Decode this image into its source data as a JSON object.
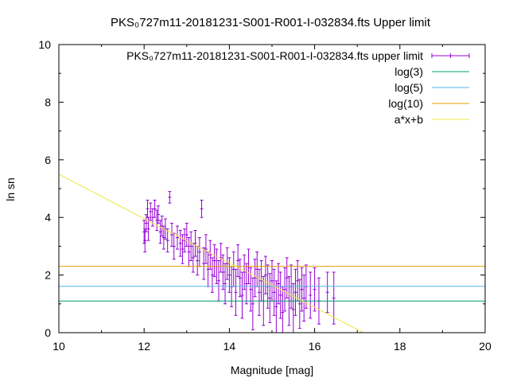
{
  "chart_data": {
    "type": "scatter",
    "title": "PKS₀727m11-20181231-S001-R001-I-032834.fts Upper limit",
    "xlabel": "Magnitude [mag]",
    "ylabel": "ln sn",
    "xlim": [
      10,
      20
    ],
    "ylim": [
      0,
      10
    ],
    "xticks": [
      "10",
      "12",
      "14",
      "16",
      "18",
      "20"
    ],
    "yticks": [
      "0",
      "2",
      "4",
      "6",
      "8",
      "10"
    ],
    "grid": false,
    "legend_position": "top-right",
    "legend": [
      {
        "label": "PKS₀727m11-20181231-S001-R001-I-032834.fts upper limit",
        "color": "#9400d3",
        "style": "errorbar"
      },
      {
        "label": "log(3)",
        "color": "#009e73",
        "style": "line"
      },
      {
        "label": "log(5)",
        "color": "#56b4e9",
        "style": "line"
      },
      {
        "label": "log(10)",
        "color": "#e69f00",
        "style": "line"
      },
      {
        "label": "a*x+b",
        "color": "#f0e442",
        "style": "line"
      }
    ],
    "hlines": [
      {
        "name": "log(3)",
        "y": 1.0986,
        "color": "#009e73"
      },
      {
        "name": "log(5)",
        "y": 1.6094,
        "color": "#56b4e9"
      },
      {
        "name": "log(10)",
        "y": 2.3026,
        "color": "#e69f00"
      }
    ],
    "fit_line": {
      "name": "a*x+b",
      "a": -0.77,
      "b": 13.2,
      "color": "#f0e442"
    },
    "scatter_series": {
      "name": "PKS₀727m11-20181231-S001-R001-I-032834.fts upper limit",
      "color": "#9400d3",
      "points": [
        [
          12.0,
          3.5,
          0.4
        ],
        [
          12.02,
          3.2,
          0.4
        ],
        [
          12.05,
          3.8,
          0.3
        ],
        [
          12.08,
          4.3,
          0.3
        ],
        [
          12.1,
          3.6,
          0.4
        ],
        [
          12.15,
          4.2,
          0.3
        ],
        [
          12.2,
          4.0,
          0.3
        ],
        [
          12.25,
          4.3,
          0.3
        ],
        [
          12.3,
          3.9,
          0.35
        ],
        [
          12.33,
          4.1,
          0.3
        ],
        [
          12.38,
          3.5,
          0.4
        ],
        [
          12.42,
          3.7,
          0.35
        ],
        [
          12.46,
          3.3,
          0.4
        ],
        [
          12.5,
          3.6,
          0.35
        ],
        [
          12.55,
          3.2,
          0.4
        ],
        [
          12.6,
          4.7,
          0.2
        ],
        [
          12.65,
          3.4,
          0.4
        ],
        [
          12.7,
          3.0,
          0.45
        ],
        [
          12.78,
          3.3,
          0.4
        ],
        [
          12.85,
          3.1,
          0.45
        ],
        [
          12.9,
          2.9,
          0.5
        ],
        [
          12.95,
          3.2,
          0.4
        ],
        [
          13.0,
          3.4,
          0.4
        ],
        [
          13.05,
          2.8,
          0.5
        ],
        [
          13.1,
          3.0,
          0.5
        ],
        [
          13.15,
          2.6,
          0.5
        ],
        [
          13.2,
          3.1,
          0.45
        ],
        [
          13.25,
          2.5,
          0.5
        ],
        [
          13.3,
          2.8,
          0.5
        ],
        [
          13.35,
          4.3,
          0.3
        ],
        [
          13.4,
          2.4,
          0.55
        ],
        [
          13.45,
          2.9,
          0.5
        ],
        [
          13.5,
          2.2,
          0.6
        ],
        [
          13.55,
          2.7,
          0.5
        ],
        [
          13.6,
          2.0,
          0.6
        ],
        [
          13.65,
          2.5,
          0.55
        ],
        [
          13.7,
          2.3,
          0.6
        ],
        [
          13.75,
          1.8,
          0.7
        ],
        [
          13.8,
          2.6,
          0.5
        ],
        [
          13.85,
          2.1,
          0.6
        ],
        [
          13.9,
          1.7,
          0.7
        ],
        [
          13.95,
          2.4,
          0.55
        ],
        [
          14.0,
          2.0,
          0.6
        ],
        [
          14.05,
          1.6,
          0.7
        ],
        [
          14.1,
          2.2,
          0.6
        ],
        [
          14.15,
          1.4,
          0.8
        ],
        [
          14.2,
          2.5,
          0.55
        ],
        [
          14.25,
          1.9,
          0.65
        ],
        [
          14.3,
          1.3,
          0.8
        ],
        [
          14.35,
          2.1,
          0.6
        ],
        [
          14.4,
          1.7,
          0.7
        ],
        [
          14.45,
          2.3,
          0.6
        ],
        [
          14.5,
          1.5,
          0.75
        ],
        [
          14.55,
          1.0,
          0.9
        ],
        [
          14.6,
          1.9,
          0.65
        ],
        [
          14.65,
          2.2,
          0.6
        ],
        [
          14.7,
          1.4,
          0.8
        ],
        [
          14.75,
          1.8,
          0.7
        ],
        [
          14.8,
          1.1,
          0.85
        ],
        [
          14.85,
          2.0,
          0.65
        ],
        [
          14.9,
          1.6,
          0.75
        ],
        [
          14.95,
          1.2,
          0.85
        ],
        [
          15.0,
          1.8,
          0.7
        ],
        [
          15.05,
          1.4,
          0.8
        ],
        [
          15.1,
          0.9,
          0.9
        ],
        [
          15.15,
          1.7,
          0.7
        ],
        [
          15.2,
          1.3,
          0.8
        ],
        [
          15.25,
          0.7,
          0.9
        ],
        [
          15.3,
          1.5,
          0.75
        ],
        [
          15.35,
          1.9,
          0.7
        ],
        [
          15.4,
          1.1,
          0.85
        ],
        [
          15.45,
          1.6,
          0.75
        ],
        [
          15.5,
          0.8,
          0.9
        ],
        [
          15.55,
          1.4,
          0.8
        ],
        [
          15.6,
          1.8,
          0.7
        ],
        [
          15.65,
          1.0,
          0.85
        ],
        [
          15.7,
          1.5,
          0.75
        ],
        [
          15.75,
          1.2,
          0.8
        ],
        [
          15.8,
          1.6,
          0.75
        ],
        [
          15.9,
          1.3,
          0.8
        ],
        [
          16.0,
          1.5,
          0.75
        ],
        [
          16.1,
          1.1,
          0.8
        ],
        [
          16.3,
          1.4,
          0.7
        ],
        [
          16.45,
          1.2,
          0.9
        ]
      ]
    }
  }
}
